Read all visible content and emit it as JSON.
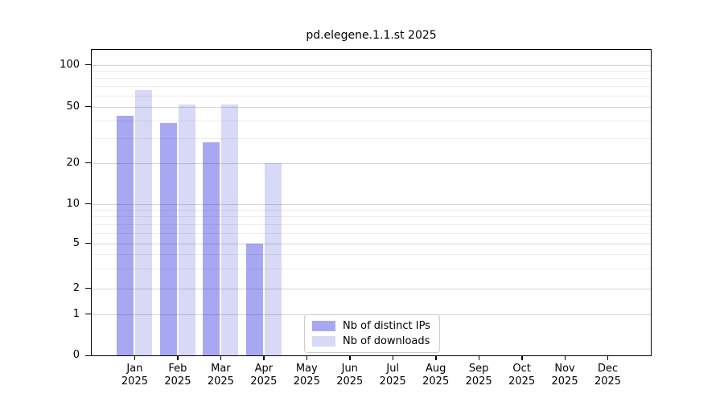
{
  "chart_data": {
    "type": "bar",
    "title": "pd.elegene.1.1.st 2025",
    "months": [
      "Jan",
      "Feb",
      "Mar",
      "Apr",
      "May",
      "Jun",
      "Jul",
      "Aug",
      "Sep",
      "Oct",
      "Nov",
      "Dec"
    ],
    "year": "2025",
    "series": [
      {
        "name": "Nb of distinct IPs",
        "color": "#a8a8f2",
        "values": [
          43,
          38,
          28,
          5,
          0,
          0,
          0,
          0,
          0,
          0,
          0,
          0
        ]
      },
      {
        "name": "Nb of downloads",
        "color": "#d8d8f7",
        "values": [
          66,
          52,
          52,
          20,
          0,
          0,
          0,
          0,
          0,
          0,
          0,
          0
        ]
      }
    ],
    "yscale": "symlog",
    "yticks": [
      0,
      1,
      2,
      5,
      10,
      20,
      50,
      100
    ],
    "minor_gridline_values": [
      3,
      4,
      6,
      7,
      8,
      9,
      30,
      40,
      60,
      70,
      80,
      90
    ],
    "ylim": [
      0,
      130
    ],
    "grid": true,
    "legend_position": "bottom-center"
  },
  "colors": {
    "background": "#ffffff",
    "axis": "#000000",
    "grid_major": "#d5d5d5",
    "grid_minor": "#ececec",
    "legend_border": "#cccccc"
  }
}
